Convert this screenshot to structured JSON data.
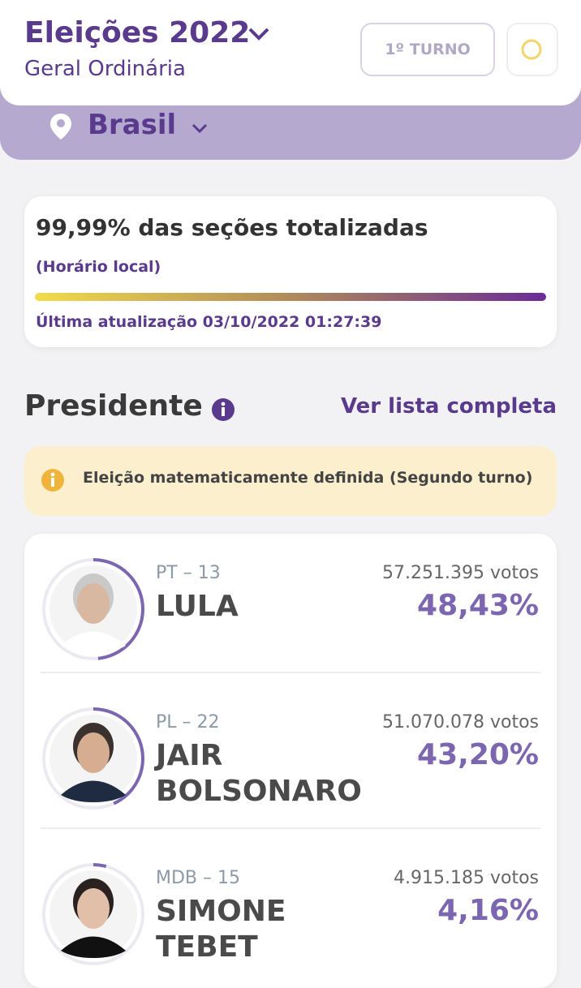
{
  "header": {
    "title": "Eleições 2022",
    "subtitle": "Geral Ordinária",
    "round_button": "1º TURNO",
    "location": "Brasil"
  },
  "status": {
    "title": "99,99% das seções totalizadas",
    "note": "(Horário local)",
    "updated": "Última atualização 03/10/2022 01:27:39"
  },
  "section": {
    "title": "Presidente",
    "link": "Ver lista completa"
  },
  "alert": {
    "text": "Eleição matematicamente definida (Segundo turno)"
  },
  "candidates": [
    {
      "party": "PT – 13",
      "name": "LULA",
      "votes": "57.251.395 votos",
      "percent": 48.43,
      "percent_label": "48,43%"
    },
    {
      "party": "PL – 22",
      "name": "JAIR BOLSONARO",
      "votes": "51.070.078 votos",
      "percent": 43.2,
      "percent_label": "43,20%"
    },
    {
      "party": "MDB – 15",
      "name": "SIMONE TEBET",
      "votes": "4.915.185 votos",
      "percent": 4.16,
      "percent_label": "4,16%"
    }
  ]
}
